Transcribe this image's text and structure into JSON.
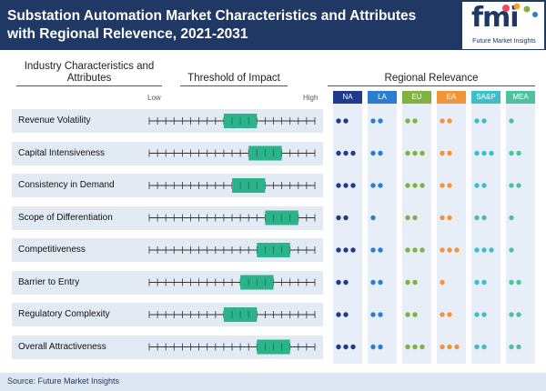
{
  "header": {
    "title": "Substation Automation Market Characteristics and Attributes with Regional Relevence, 2021-2031",
    "logo_text": "fmi",
    "logo_subtitle": "Future Market Insights"
  },
  "column_headers": {
    "industry": "Industry Characteristics and Attributes",
    "threshold": "Threshold of Impact",
    "regional": "Regional Relevance",
    "low": "Low",
    "high": "High"
  },
  "colors": {
    "navy": "#1f3864",
    "teal": "#2bb38a",
    "row_bg": "#e2eaf4"
  },
  "chart_data": {
    "type": "table",
    "title": "Substation Automation Market Characteristics and Attributes with Regional Relevence, 2021-2031",
    "regions": [
      {
        "name": "NA",
        "color": "#1f3a8a"
      },
      {
        "name": "LA",
        "color": "#2a7dd1"
      },
      {
        "name": "EU",
        "color": "#7fb23f"
      },
      {
        "name": "EA",
        "color": "#f0953a"
      },
      {
        "name": "SA&P",
        "color": "#3cbfc9"
      },
      {
        "name": "MEA",
        "color": "#4dc29f"
      }
    ],
    "threshold_scale": {
      "min": 0,
      "max": 20,
      "ticks": 21
    },
    "rows": [
      {
        "label": "Revenue Volatility",
        "impact_low": 9,
        "impact_high": 13,
        "regional": [
          2,
          2,
          2,
          2,
          2,
          1
        ]
      },
      {
        "label": "Capital Intensiveness",
        "impact_low": 12,
        "impact_high": 16,
        "regional": [
          3,
          2,
          3,
          2,
          3,
          2
        ]
      },
      {
        "label": "Consistency in Demand",
        "impact_low": 10,
        "impact_high": 14,
        "regional": [
          3,
          2,
          3,
          2,
          2,
          2
        ]
      },
      {
        "label": "Scope of Differentiation",
        "impact_low": 14,
        "impact_high": 18,
        "regional": [
          2,
          1,
          2,
          2,
          2,
          1
        ]
      },
      {
        "label": "Competitiveness",
        "impact_low": 13,
        "impact_high": 17,
        "regional": [
          3,
          2,
          3,
          3,
          3,
          1
        ]
      },
      {
        "label": "Barrier to Entry",
        "impact_low": 11,
        "impact_high": 15,
        "regional": [
          2,
          2,
          2,
          1,
          2,
          2
        ]
      },
      {
        "label": "Regulatory Complexity",
        "impact_low": 9,
        "impact_high": 13,
        "regional": [
          2,
          2,
          2,
          2,
          2,
          2
        ]
      },
      {
        "label": "Overall Attractiveness",
        "impact_low": 13,
        "impact_high": 17,
        "regional": [
          3,
          2,
          3,
          3,
          2,
          2
        ]
      }
    ]
  },
  "footer": {
    "source": "Source: Future Market Insights"
  }
}
